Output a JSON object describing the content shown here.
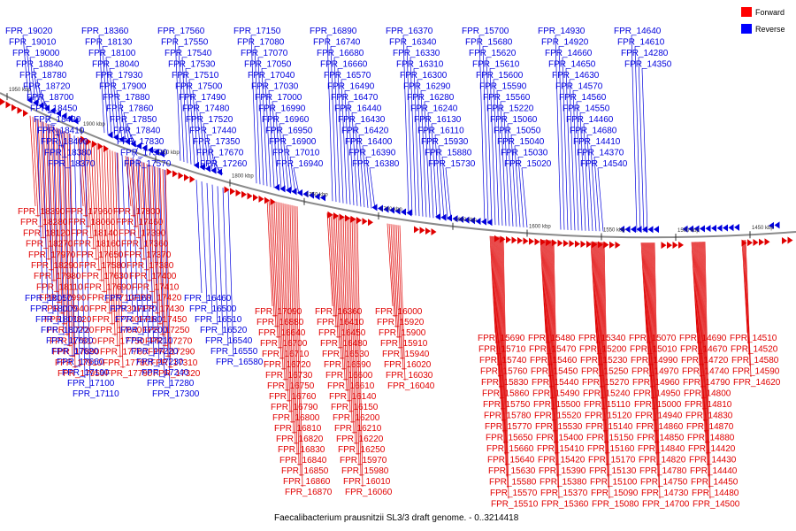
{
  "caption": "Faecalibacterium prausnitzii SL3/3 draft genome. - 0..3214418",
  "legend": [
    {
      "label": "Forward",
      "color": "#ff0000"
    },
    {
      "label": "Reverse",
      "color": "#0000ff"
    }
  ],
  "colors": {
    "forward": "#e00000",
    "reverse": "#0000dd",
    "axis": "#888888"
  },
  "ticks": [
    "1950 kbp",
    "1900 kbp",
    "1850 kbp",
    "1800 kbp",
    "1750 kbp",
    "1700 kbp",
    "1650 kbp",
    "1600 kbp",
    "1550 kbp",
    "1500 kbp",
    "1450 kbp"
  ],
  "reverse_top": [
    "FPR_19020",
    "FPR_19010",
    "FPR_19000",
    "FPR_18840",
    "FPR_18780",
    "FPR_18720",
    "FPR_18700",
    "FPR_18450",
    "FPR_18420",
    "FPR_18410",
    "FPR_18400",
    "FPR_18380",
    "FPR_18370",
    "FPR_18360",
    "FPR_18130",
    "FPR_18100",
    "FPR_18040",
    "FPR_17930",
    "FPR_17900",
    "FPR_17880",
    "FPR_17860",
    "FPR_17850",
    "FPR_17840",
    "FPR_17830",
    "FPR_17590",
    "FPR_17570",
    "FPR_17560",
    "FPR_17550",
    "FPR_17540",
    "FPR_17530",
    "FPR_17510",
    "FPR_17500",
    "FPR_17490",
    "FPR_17480",
    "FPR_17520",
    "FPR_17440",
    "FPR_17350",
    "FPR_17670",
    "FPR_17260",
    "FPR_17150",
    "FPR_17080",
    "FPR_17070",
    "FPR_17050",
    "FPR_17040",
    "FPR_17030",
    "FPR_17000",
    "FPR_16990",
    "FPR_16960",
    "FPR_16950",
    "FPR_16900",
    "FPR_17010",
    "FPR_16940",
    "FPR_16890",
    "FPR_16740",
    "FPR_16680",
    "FPR_16660",
    "FPR_16570",
    "FPR_16490",
    "FPR_16470",
    "FPR_16440",
    "FPR_16430",
    "FPR_16420",
    "FPR_16400",
    "FPR_16390",
    "FPR_16380",
    "FPR_16370",
    "FPR_16340",
    "FPR_16330",
    "FPR_16310",
    "FPR_16300",
    "FPR_16290",
    "FPR_16280",
    "FPR_16240",
    "FPR_16130",
    "FPR_16110",
    "FPR_15930",
    "FPR_15880",
    "FPR_15730",
    "FPR_15700",
    "FPR_15680",
    "FPR_15620",
    "FPR_15610",
    "FPR_15600",
    "FPR_15590",
    "FPR_15560",
    "FPR_15220",
    "FPR_15060",
    "FPR_15050",
    "FPR_15040",
    "FPR_15030",
    "FPR_15020",
    "FPR_14930",
    "FPR_14920",
    "FPR_14660",
    "FPR_14650",
    "FPR_14630",
    "FPR_14570",
    "FPR_14560",
    "FPR_14550",
    "FPR_14460",
    "FPR_14680",
    "FPR_14410",
    "FPR_14370",
    "FPR_14540",
    "FPR_14640",
    "FPR_14610",
    "FPR_14280",
    "FPR_14350"
  ],
  "forward_left": [
    "FPR_18390",
    "FPR_18280",
    "FPR_18120",
    "FPR_18270",
    "FPR_17970",
    "FPR_18290",
    "FPR_17980",
    "FPR_18110",
    "FPR_17990",
    "FPR_17940",
    "FPR_17820",
    "FPR_17720",
    "FPR_17810",
    "FPR_17890",
    "FPR_17910",
    "FPR_17950",
    "FPR_17960",
    "FPR_18060",
    "FPR_18140",
    "FPR_18160",
    "FPR_17650",
    "FPR_17580",
    "FPR_17630",
    "FPR_17690",
    "FPR_17710",
    "FPR_17730",
    "FPR_17740",
    "FPR_17640",
    "FPR_17750",
    "FPR_17760",
    "FPR_17780",
    "FPR_17790",
    "FPR_17800",
    "FPR_17460",
    "FPR_17390",
    "FPR_17360",
    "FPR_17370",
    "FPR_17380",
    "FPR_17400",
    "FPR_17410",
    "FPR_17420",
    "FPR_17430",
    "FPR_17450",
    "FPR_17250",
    "FPR_17270",
    "FPR_17290",
    "FPR_17310",
    "FPR_17320"
  ],
  "reverse_low": [
    "FPR_18050",
    "FPR_18000",
    "FPR_18010",
    "FPR_18020",
    "FPR_17600",
    "FPR_17620",
    "FPR_17660",
    "FPR_17190",
    "FPR_17100",
    "FPR_17110",
    "FPR_17160",
    "FPR_17170",
    "FPR_17180",
    "FPR_17200",
    "FPR_17210",
    "FPR_17220",
    "FPR_17230",
    "FPR_17240",
    "FPR_17280",
    "FPR_17300",
    "FPR_16460",
    "FPR_16500",
    "FPR_16510",
    "FPR_16520",
    "FPR_16540",
    "FPR_16550",
    "FPR_16580"
  ],
  "forward_mid": [
    "FPR_17090",
    "FPR_16880",
    "FPR_16640",
    "FPR_16700",
    "FPR_16710",
    "FPR_16720",
    "FPR_16730",
    "FPR_16750",
    "FPR_16760",
    "FPR_16790",
    "FPR_16800",
    "FPR_16810",
    "FPR_16820",
    "FPR_16830",
    "FPR_16840",
    "FPR_16850",
    "FPR_16860",
    "FPR_16870",
    "FPR_16360",
    "FPR_16410",
    "FPR_16450",
    "FPR_16480",
    "FPR_16530",
    "FPR_16590",
    "FPR_16600",
    "FPR_16610",
    "FPR_16140",
    "FPR_16150",
    "FPR_16200",
    "FPR_16210",
    "FPR_16220",
    "FPR_16250",
    "FPR_15970",
    "FPR_15980",
    "FPR_16010",
    "FPR_16060",
    "FPR_16000",
    "FPR_15920",
    "FPR_15900",
    "FPR_15910",
    "FPR_15940",
    "FPR_16020",
    "FPR_16030",
    "FPR_16040"
  ],
  "forward_right": [
    "FPR_15690",
    "FPR_15710",
    "FPR_15740",
    "FPR_15760",
    "FPR_15830",
    "FPR_15860",
    "FPR_15750",
    "FPR_15780",
    "FPR_15770",
    "FPR_15650",
    "FPR_15660",
    "FPR_15640",
    "FPR_15630",
    "FPR_15580",
    "FPR_15570",
    "FPR_15510",
    "FPR_15480",
    "FPR_15470",
    "FPR_15460",
    "FPR_15450",
    "FPR_15440",
    "FPR_15490",
    "FPR_15500",
    "FPR_15520",
    "FPR_15530",
    "FPR_15400",
    "FPR_15410",
    "FPR_15420",
    "FPR_15390",
    "FPR_15380",
    "FPR_15370",
    "FPR_15360",
    "FPR_15340",
    "FPR_15200",
    "FPR_15230",
    "FPR_15250",
    "FPR_15270",
    "FPR_15240",
    "FPR_15110",
    "FPR_15120",
    "FPR_15140",
    "FPR_15150",
    "FPR_15160",
    "FPR_15170",
    "FPR_15130",
    "FPR_15100",
    "FPR_15090",
    "FPR_15080",
    "FPR_15070",
    "FPR_15010",
    "FPR_14990",
    "FPR_14970",
    "FPR_14960",
    "FPR_14950",
    "FPR_15000",
    "FPR_14940",
    "FPR_14860",
    "FPR_14850",
    "FPR_14840",
    "FPR_14820",
    "FPR_14780",
    "FPR_14750",
    "FPR_14730",
    "FPR_14700",
    "FPR_14690",
    "FPR_14670",
    "FPR_14720",
    "FPR_14740",
    "FPR_14790",
    "FPR_14800",
    "FPR_14810",
    "FPR_14830",
    "FPR_14870",
    "FPR_14880",
    "FPR_14420",
    "FPR_14430",
    "FPR_14440",
    "FPR_14450",
    "FPR_14480",
    "FPR_14500",
    "FPR_14510",
    "FPR_14520",
    "FPR_14580",
    "FPR_14590",
    "FPR_14620"
  ]
}
